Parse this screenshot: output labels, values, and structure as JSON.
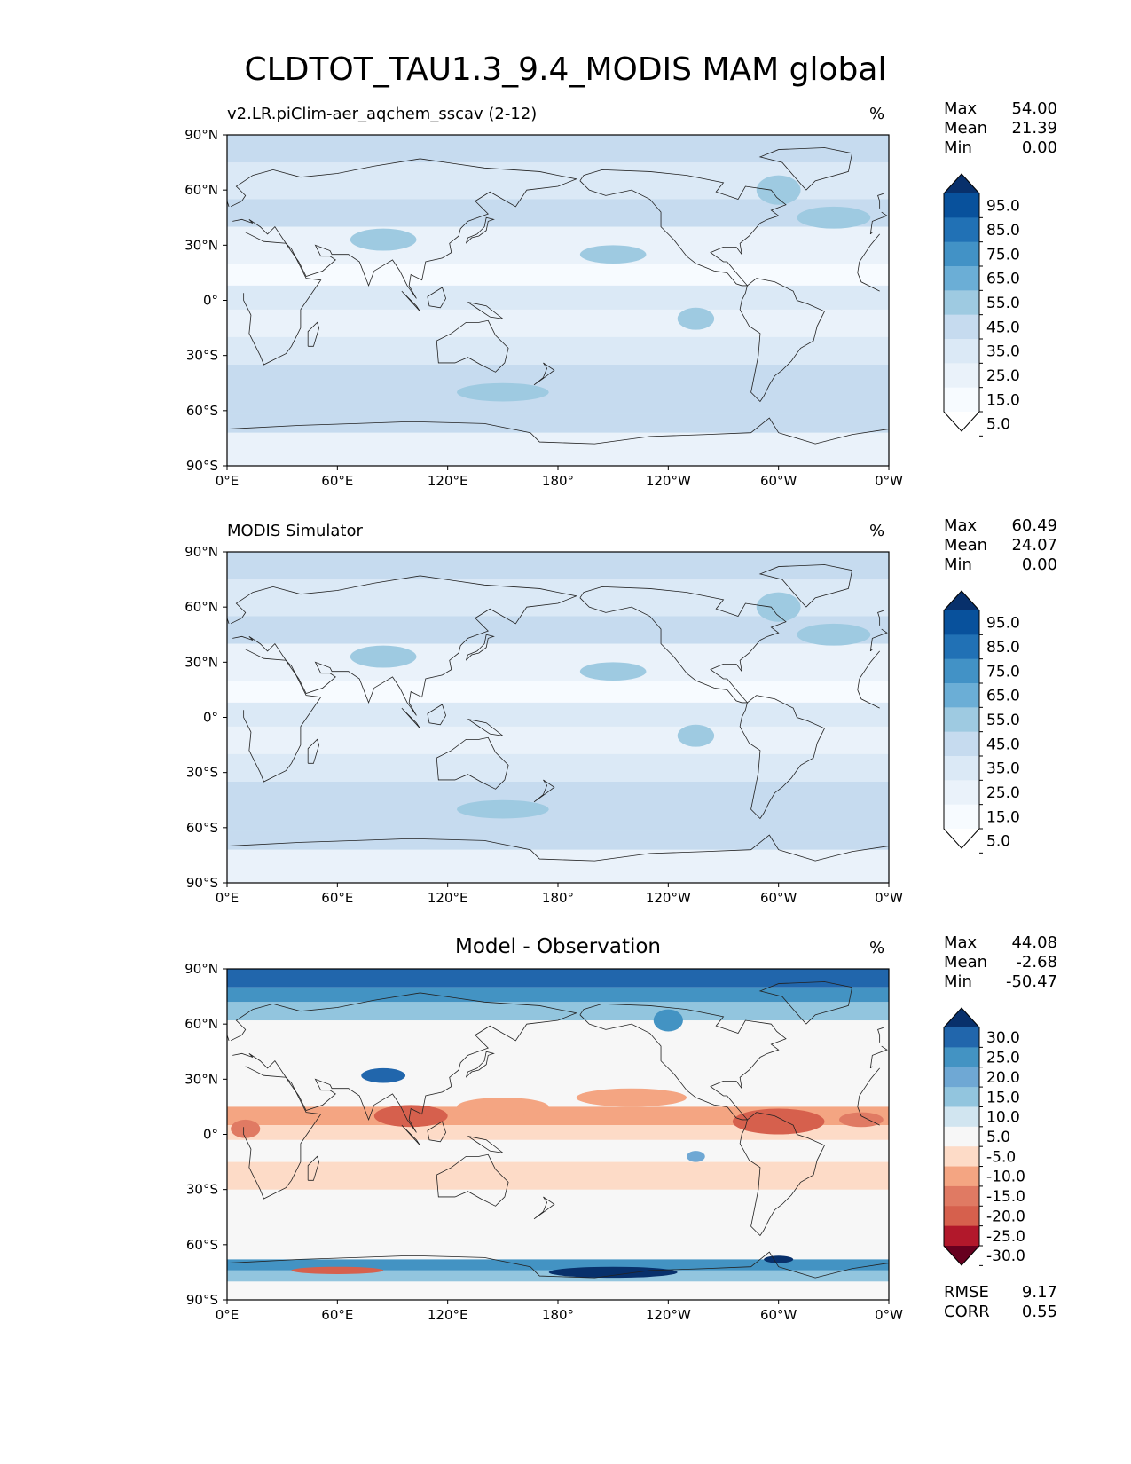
{
  "title": "CLDTOT_TAU1.3_9.4_MODIS MAM global",
  "chart_data": [
    {
      "type": "heatmap",
      "title": "v2.LR.piClim-aer_aqchem_sscav (2-12)",
      "units": "%",
      "xlabels": [
        "0°E",
        "60°E",
        "120°E",
        "180°",
        "120°W",
        "60°W",
        "0°W"
      ],
      "ylabels": [
        "90°N",
        "60°N",
        "30°N",
        "0°",
        "30°S",
        "60°S",
        "90°S"
      ],
      "stats": [
        {
          "label": "Max",
          "value": "54.00"
        },
        {
          "label": "Mean",
          "value": "21.39"
        },
        {
          "label": "Min",
          "value": "0.00"
        }
      ],
      "colorbar": {
        "levels": [
          "95.0",
          "85.0",
          "75.0",
          "65.0",
          "55.0",
          "45.0",
          "35.0",
          "25.0",
          "15.0",
          "5.0"
        ],
        "colors": [
          "#08306b",
          "#08519c",
          "#2171b5",
          "#4292c6",
          "#6baed6",
          "#9ecae1",
          "#c6dbef",
          "#dbe9f6",
          "#eaf2fa",
          "#f7fbff",
          "#ffffff"
        ]
      }
    },
    {
      "type": "heatmap",
      "title": "MODIS Simulator",
      "units": "%",
      "xlabels": [
        "0°E",
        "60°E",
        "120°E",
        "180°",
        "120°W",
        "60°W",
        "0°W"
      ],
      "ylabels": [
        "90°N",
        "60°N",
        "30°N",
        "0°",
        "30°S",
        "60°S",
        "90°S"
      ],
      "stats": [
        {
          "label": "Max",
          "value": "60.49"
        },
        {
          "label": "Mean",
          "value": "24.07"
        },
        {
          "label": "Min",
          "value": "0.00"
        }
      ],
      "colorbar": {
        "levels": [
          "95.0",
          "85.0",
          "75.0",
          "65.0",
          "55.0",
          "45.0",
          "35.0",
          "25.0",
          "15.0",
          "5.0"
        ],
        "colors": [
          "#08306b",
          "#08519c",
          "#2171b5",
          "#4292c6",
          "#6baed6",
          "#9ecae1",
          "#c6dbef",
          "#dbe9f6",
          "#eaf2fa",
          "#f7fbff",
          "#ffffff"
        ]
      }
    },
    {
      "type": "heatmap",
      "title": "Model - Observation",
      "units": "%",
      "xlabels": [
        "0°E",
        "60°E",
        "120°E",
        "180°",
        "120°W",
        "60°W",
        "0°W"
      ],
      "ylabels": [
        "90°N",
        "60°N",
        "30°N",
        "0°",
        "30°S",
        "60°S",
        "90°S"
      ],
      "stats": [
        {
          "label": "Max",
          "value": "44.08"
        },
        {
          "label": "Mean",
          "value": "-2.68"
        },
        {
          "label": "Min",
          "value": "-50.47"
        }
      ],
      "colorbar": {
        "levels": [
          "30.0",
          "25.0",
          "20.0",
          "15.0",
          "10.0",
          "5.0",
          "-5.0",
          "-10.0",
          "-15.0",
          "-20.0",
          "-25.0",
          "-30.0"
        ],
        "colors": [
          "#08306b",
          "#2166ac",
          "#4393c3",
          "#6fa8d4",
          "#92c5de",
          "#d1e5f0",
          "#f7f7f7",
          "#fddbc7",
          "#f4a582",
          "#e07a63",
          "#d6604d",
          "#b2182b",
          "#67001f"
        ]
      },
      "metrics": [
        {
          "label": "RMSE",
          "value": "9.17"
        },
        {
          "label": "CORR",
          "value": "0.55"
        }
      ]
    }
  ]
}
